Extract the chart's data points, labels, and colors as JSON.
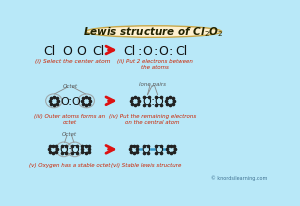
{
  "title": "Lewis structure of Cl$_2$O$_2$",
  "bg_color": "#b8e8f8",
  "title_bg": "#fdf0d0",
  "title_border": "#c8a84b",
  "arrow_color": "#dd1111",
  "atom_color": "#111111",
  "dot_color": "#222222",
  "label_color": "#cc2200",
  "circle_color": "#999999",
  "bond_color": "#3399cc",
  "watermark": "© knordsilearning.com",
  "step_labels": [
    "(i) Select the center atom",
    "(ii) Put 2 electrons between\nthe atoms",
    "(iii) Outer atoms forms an\noctet",
    "(iv) Put the remaining electrons\non the central atom",
    "(v) Oxygen has a stable octet",
    "(vi) Stable lewis structure"
  ]
}
